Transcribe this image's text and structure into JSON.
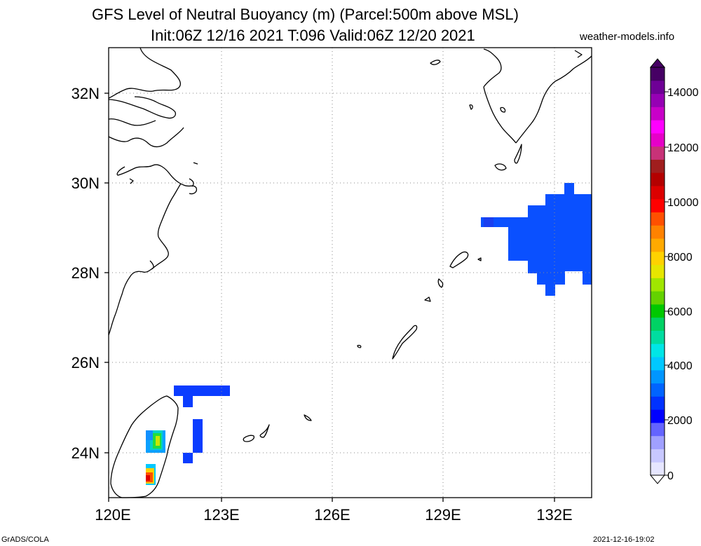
{
  "title": {
    "line1": "GFS Level of Neutral Buoyancy (m) (Parcel:500m above MSL)",
    "line2": "Init:06Z 12/16 2021 T:096 Valid:06Z 12/20 2021",
    "site": "weather-models.info"
  },
  "footer": {
    "left": "GrADS/COLA",
    "right": "2021-12-16-19:02"
  },
  "map": {
    "lon_range": [
      120,
      133
    ],
    "lat_range": [
      23,
      33
    ],
    "lon_labels": [
      "120E",
      "123E",
      "126E",
      "129E",
      "132E"
    ],
    "lat_labels": [
      "32N",
      "30N",
      "28N",
      "26N",
      "24N"
    ],
    "grid": "dotted"
  },
  "colorbar": {
    "labels": [
      "14000",
      "12000",
      "10000",
      "8000",
      "6000",
      "4000",
      "2000",
      "0"
    ],
    "colors": [
      "#e6e6ff",
      "#c8c8ff",
      "#a0a0ff",
      "#6464ff",
      "#0000ff",
      "#0032ff",
      "#0064ff",
      "#0096ff",
      "#00c8ff",
      "#00e6e6",
      "#00dca0",
      "#00d264",
      "#00c800",
      "#64d200",
      "#a0e600",
      "#e6e600",
      "#ffd200",
      "#ffaa00",
      "#ff8200",
      "#ff5000",
      "#ff0000",
      "#dc0000",
      "#b40000",
      "#a01e1e",
      "#c83278",
      "#e600c8",
      "#ff00ff",
      "#c800c8",
      "#9600b4",
      "#6e0096",
      "#460064"
    ]
  }
}
